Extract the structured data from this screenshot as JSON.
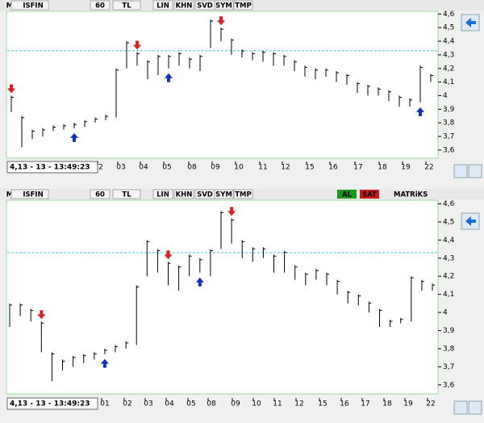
{
  "panels": [
    {
      "toolbar": [
        "M",
        "ISFIN",
        "60",
        "TL",
        "LIN",
        "KHN",
        "SVD",
        "SYM",
        "TMP"
      ],
      "ylim": [
        3.54,
        4.62
      ],
      "yticks": [
        {
          "value": 3.6,
          "label": "3,6"
        },
        {
          "value": 3.7,
          "label": "3,7"
        },
        {
          "value": 3.8,
          "label": "3,8"
        },
        {
          "value": 3.9,
          "label": "3,9"
        },
        4,
        {
          "value": 4.1,
          "label": "4,1"
        },
        {
          "value": 4.2,
          "label": "4,2"
        },
        {
          "value": 4.3,
          "label": "4,3"
        },
        {
          "value": 4.4,
          "label": "4,4"
        },
        {
          "value": 4.5,
          "label": "4,5"
        },
        {
          "value": 4.6,
          "label": "4,6"
        }
      ],
      "reference_line": 4.33,
      "x_labels": [
        "2",
        "03",
        "04",
        "05",
        "08",
        "09",
        "10",
        "11",
        "12",
        "15",
        "16",
        "17",
        "18",
        "19",
        "22"
      ],
      "status": "4,13 - 13 - 13:49:23",
      "bars": [
        [
          3.88,
          4.0
        ],
        [
          3.62,
          3.85
        ],
        [
          3.68,
          3.75
        ],
        [
          3.7,
          3.76
        ],
        [
          3.74,
          3.78
        ],
        [
          3.75,
          3.79
        ],
        [
          3.76,
          3.8
        ],
        [
          3.77,
          3.82
        ],
        [
          3.8,
          3.84
        ],
        [
          3.82,
          3.86
        ],
        [
          3.84,
          4.2
        ],
        [
          4.2,
          4.4
        ],
        [
          4.22,
          4.32
        ],
        [
          4.12,
          4.26
        ],
        [
          4.15,
          4.3
        ],
        [
          4.2,
          4.3
        ],
        [
          4.22,
          4.32
        ],
        [
          4.2,
          4.28
        ],
        [
          4.18,
          4.3
        ],
        [
          4.35,
          4.56
        ],
        [
          4.4,
          4.5
        ],
        [
          4.3,
          4.42
        ],
        [
          4.28,
          4.34
        ],
        [
          4.26,
          4.32
        ],
        [
          4.25,
          4.33
        ],
        [
          4.22,
          4.32
        ],
        [
          4.22,
          4.3
        ],
        [
          4.18,
          4.26
        ],
        [
          4.14,
          4.22
        ],
        [
          4.12,
          4.2
        ],
        [
          4.14,
          4.2
        ],
        [
          4.1,
          4.18
        ],
        [
          4.08,
          4.16
        ],
        [
          4.02,
          4.1
        ],
        [
          4.0,
          4.08
        ],
        [
          4.0,
          4.06
        ],
        [
          3.96,
          4.04
        ],
        [
          3.92,
          4.0
        ],
        [
          3.92,
          3.98
        ],
        [
          3.95,
          4.22
        ],
        [
          4.1,
          4.16
        ]
      ],
      "signals": [
        {
          "bar": 0,
          "color": "#e02020"
        },
        {
          "bar": 6,
          "color": "#1030c0"
        },
        {
          "bar": 12,
          "color": "#e02020"
        },
        {
          "bar": 15,
          "color": "#1030c0"
        },
        {
          "bar": 20,
          "color": "#e02020"
        },
        {
          "bar": 39,
          "color": "#1030c0"
        }
      ]
    },
    {
      "toolbar": [
        "M",
        "ISFIN",
        "60",
        "TL",
        "LIN",
        "KHN",
        "SVD",
        "SYM",
        "TMP"
      ],
      "buttons": [
        "AL",
        "SAT"
      ],
      "brand": "MATRiKS",
      "ylim": [
        3.55,
        4.62
      ],
      "yticks": [
        {
          "value": 3.6,
          "label": "3,6"
        },
        {
          "value": 3.7,
          "label": "3,7"
        },
        {
          "value": 3.8,
          "label": "3,8"
        },
        {
          "value": 3.9,
          "label": "3,9"
        },
        4,
        {
          "value": 4.1,
          "label": "4,1"
        },
        {
          "value": 4.2,
          "label": "4,2"
        },
        {
          "value": 4.3,
          "label": "4,3"
        },
        {
          "value": 4.4,
          "label": "4,4"
        },
        {
          "value": 4.5,
          "label": "4,5"
        },
        {
          "value": 4.6,
          "label": "4,6"
        }
      ],
      "reference_line": 4.33,
      "x_labels": [
        "01",
        "02",
        "03",
        "04",
        "05",
        "08",
        "09",
        "10",
        "11",
        "12",
        "15",
        "16",
        "17",
        "18",
        "19",
        "22"
      ],
      "status": "4,13 - 13 - 13:49:23",
      "bars": [
        [
          3.92,
          4.05
        ],
        [
          3.98,
          4.05
        ],
        [
          3.95,
          4.02
        ],
        [
          3.78,
          3.95
        ],
        [
          3.62,
          3.78
        ],
        [
          3.68,
          3.74
        ],
        [
          3.7,
          3.76
        ],
        [
          3.72,
          3.77
        ],
        [
          3.74,
          3.78
        ],
        [
          3.77,
          3.8
        ],
        [
          3.78,
          3.82
        ],
        [
          3.8,
          3.84
        ],
        [
          3.82,
          4.15
        ],
        [
          4.2,
          4.4
        ],
        [
          4.22,
          4.35
        ],
        [
          4.15,
          4.28
        ],
        [
          4.12,
          4.26
        ],
        [
          4.2,
          4.32
        ],
        [
          4.22,
          4.3
        ],
        [
          4.2,
          4.35
        ],
        [
          4.35,
          4.56
        ],
        [
          4.38,
          4.52
        ],
        [
          4.3,
          4.4
        ],
        [
          4.28,
          4.36
        ],
        [
          4.3,
          4.36
        ],
        [
          4.22,
          4.32
        ],
        [
          4.22,
          4.34
        ],
        [
          4.18,
          4.26
        ],
        [
          4.15,
          4.22
        ],
        [
          4.18,
          4.24
        ],
        [
          4.15,
          4.22
        ],
        [
          4.1,
          4.18
        ],
        [
          4.05,
          4.12
        ],
        [
          4.04,
          4.1
        ],
        [
          4.0,
          4.06
        ],
        [
          3.92,
          4.02
        ],
        [
          3.92,
          3.96
        ],
        [
          3.94,
          3.97
        ],
        [
          3.95,
          4.2
        ],
        [
          4.12,
          4.18
        ],
        [
          4.12,
          4.16
        ]
      ],
      "signals": [
        {
          "bar": 3,
          "color": "#e02020"
        },
        {
          "bar": 9,
          "color": "#1030c0"
        },
        {
          "bar": 15,
          "color": "#e02020"
        },
        {
          "bar": 18,
          "color": "#1030c0"
        },
        {
          "bar": 21,
          "color": "#e02020"
        }
      ]
    }
  ]
}
